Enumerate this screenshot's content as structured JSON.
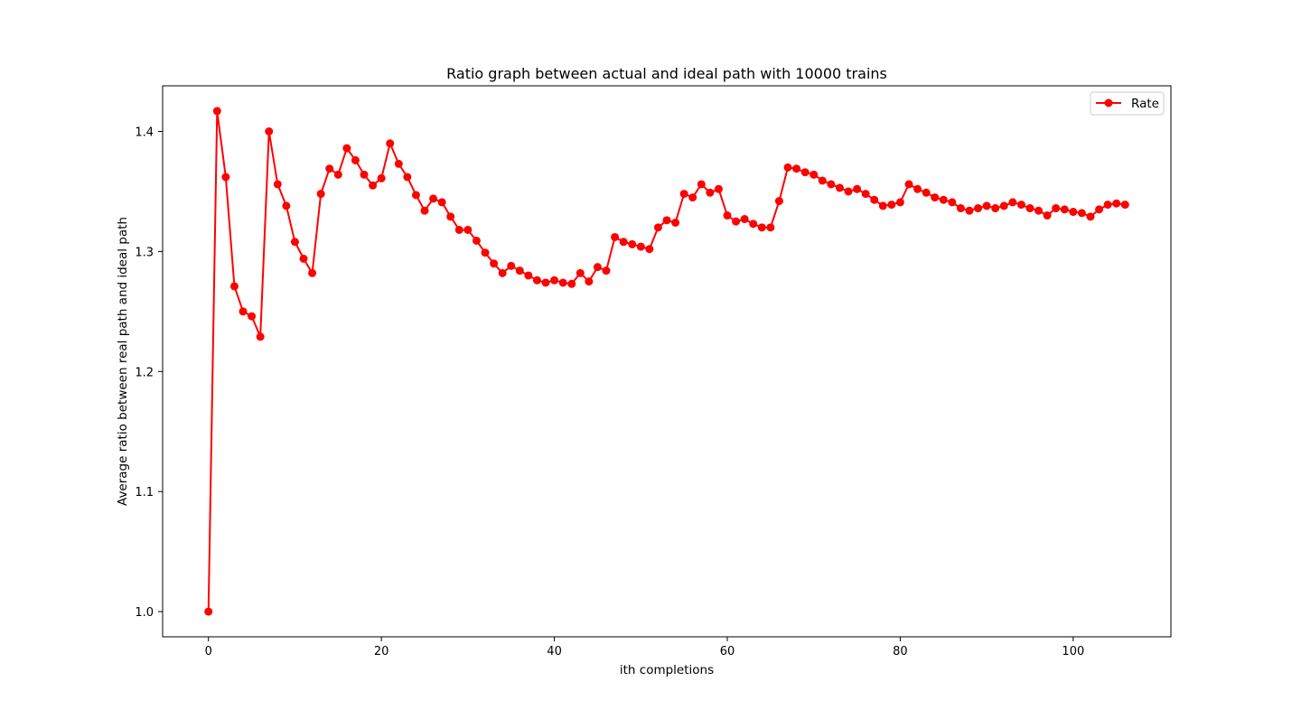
{
  "chart_data": {
    "type": "line",
    "title": "Ratio graph between actual and ideal path with 10000 trains",
    "xlabel": "ith completions",
    "ylabel": "Average ratio between real path and ideal path",
    "xlim": [
      -5.3,
      111.3
    ],
    "ylim": [
      0.979,
      1.438
    ],
    "xticks": [
      0,
      20,
      40,
      60,
      80,
      100
    ],
    "yticks": [
      1.0,
      1.1,
      1.2,
      1.3,
      1.4
    ],
    "xtick_labels": [
      "0",
      "20",
      "40",
      "60",
      "80",
      "100"
    ],
    "ytick_labels": [
      "1.0",
      "1.1",
      "1.2",
      "1.3",
      "1.4"
    ],
    "grid": false,
    "legend": {
      "position": "top-right"
    },
    "series": [
      {
        "name": "Rate",
        "color": "#ff0000",
        "marker": "circle",
        "x": [
          0,
          1,
          2,
          3,
          4,
          5,
          6,
          7,
          8,
          9,
          10,
          11,
          12,
          13,
          14,
          15,
          16,
          17,
          18,
          19,
          20,
          21,
          22,
          23,
          24,
          25,
          26,
          27,
          28,
          29,
          30,
          31,
          32,
          33,
          34,
          35,
          36,
          37,
          38,
          39,
          40,
          41,
          42,
          43,
          44,
          45,
          46,
          47,
          48,
          49,
          50,
          51,
          52,
          53,
          54,
          55,
          56,
          57,
          58,
          59,
          60,
          61,
          62,
          63,
          64,
          65,
          66,
          67,
          68,
          69,
          70,
          71,
          72,
          73,
          74,
          75,
          76,
          77,
          78,
          79,
          80,
          81,
          82,
          83,
          84,
          85,
          86,
          87,
          88,
          89,
          90,
          91,
          92,
          93,
          94,
          95,
          96,
          97,
          98,
          99,
          100,
          101,
          102,
          103,
          104,
          105,
          106
        ],
        "values": [
          1.0,
          1.417,
          1.362,
          1.271,
          1.25,
          1.246,
          1.229,
          1.4,
          1.356,
          1.338,
          1.308,
          1.294,
          1.282,
          1.348,
          1.369,
          1.364,
          1.386,
          1.376,
          1.364,
          1.355,
          1.361,
          1.39,
          1.373,
          1.362,
          1.347,
          1.334,
          1.344,
          1.341,
          1.329,
          1.318,
          1.318,
          1.309,
          1.299,
          1.29,
          1.282,
          1.288,
          1.284,
          1.28,
          1.276,
          1.274,
          1.276,
          1.274,
          1.273,
          1.282,
          1.275,
          1.287,
          1.284,
          1.312,
          1.308,
          1.306,
          1.304,
          1.302,
          1.32,
          1.326,
          1.324,
          1.348,
          1.345,
          1.356,
          1.349,
          1.352,
          1.33,
          1.325,
          1.327,
          1.323,
          1.32,
          1.32,
          1.342,
          1.37,
          1.369,
          1.366,
          1.364,
          1.359,
          1.356,
          1.353,
          1.35,
          1.352,
          1.348,
          1.343,
          1.338,
          1.339,
          1.341,
          1.356,
          1.352,
          1.349,
          1.345,
          1.343,
          1.341,
          1.336,
          1.334,
          1.336,
          1.338,
          1.336,
          1.338,
          1.341,
          1.339,
          1.336,
          1.334,
          1.33,
          1.336,
          1.335,
          1.333,
          1.332,
          1.329,
          1.335,
          1.339,
          1.34,
          1.339
        ]
      }
    ]
  }
}
